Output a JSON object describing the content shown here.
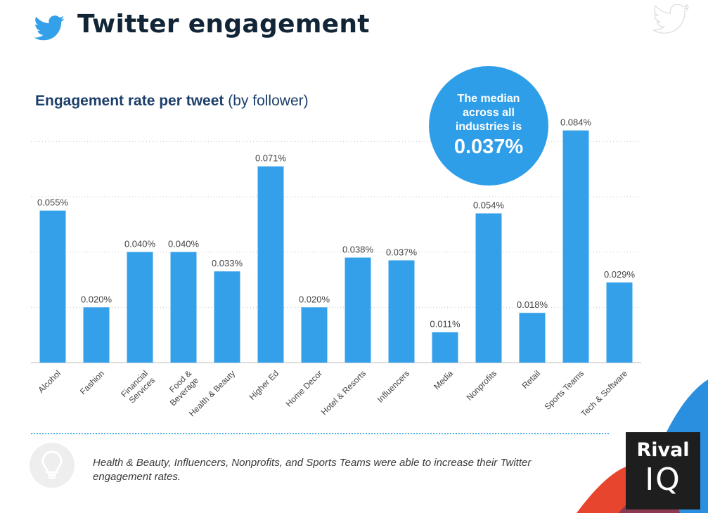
{
  "header": {
    "title": "Twitter engagement",
    "logo_icon": "twitter-bird-icon",
    "watermark_icon": "twitter-bird-outline-icon"
  },
  "subtitle": {
    "bold": "Engagement rate per tweet",
    "normal": "(by follower)"
  },
  "median": {
    "text": "The median across all industries is",
    "value": "0.037%"
  },
  "chart_data": {
    "type": "bar",
    "categories": [
      "Alcohol",
      "Fashion",
      "Financial Services",
      "Food & Beverage",
      "Health & Beauty",
      "Higher Ed",
      "Home Decor",
      "Hotel & Resorts",
      "Influencers",
      "Media",
      "Nonprofits",
      "Retail",
      "Sports Teams",
      "Tech & Software"
    ],
    "values": [
      0.055,
      0.02,
      0.04,
      0.04,
      0.033,
      0.071,
      0.02,
      0.038,
      0.037,
      0.011,
      0.054,
      0.018,
      0.084,
      0.029
    ],
    "labels": [
      "0.055%",
      "0.020%",
      "0.040%",
      "0.040%",
      "0.033%",
      "0.071%",
      "0.020%",
      "0.038%",
      "0.037%",
      "0.011%",
      "0.054%",
      "0.018%",
      "0.084%",
      "0.029%"
    ],
    "title": "Engagement rate per tweet (by follower)",
    "ylim": [
      0,
      0.09
    ],
    "grid": true,
    "bar_color": "#35a0ea"
  },
  "footnote": "Health & Beauty, Influencers, Nonprofits, and Sports Teams were able to increase their Twitter engagement rates.",
  "footnote_icon": "lightbulb-icon",
  "brand": {
    "line1": "Rival",
    "line2": "IQ"
  },
  "colors": {
    "accent": "#35a0ea",
    "title": "#122537",
    "subtitle": "#1c3f6a"
  }
}
